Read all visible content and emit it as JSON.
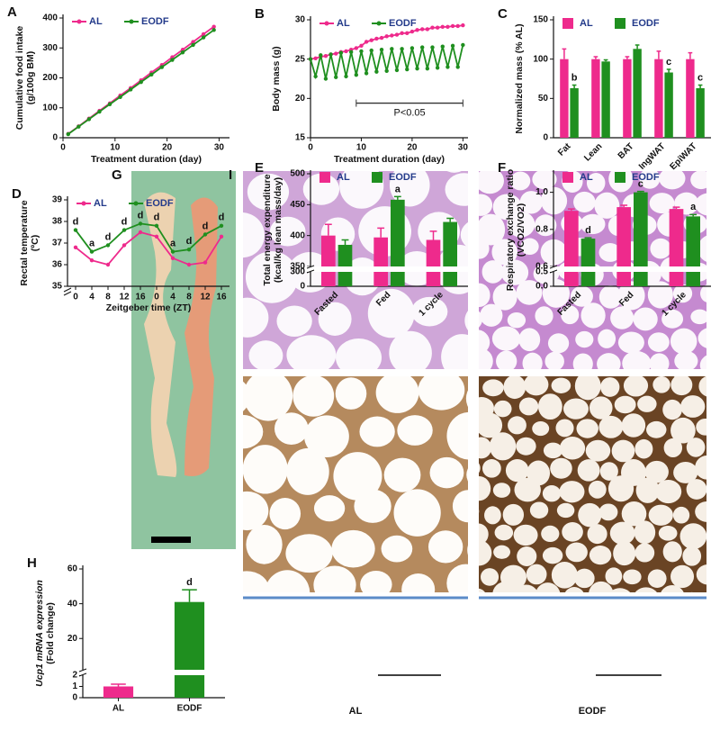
{
  "chart_data": [
    {
      "type": "line",
      "panel": "A",
      "x_label": "Treatment duration (day)",
      "y_label": [
        "Cumulative food intake",
        "(g/100g BM)"
      ],
      "x": [
        1,
        3,
        5,
        7,
        9,
        11,
        13,
        15,
        17,
        19,
        21,
        23,
        25,
        27,
        29
      ],
      "xlim": [
        0,
        32
      ],
      "xticks": [
        0,
        10,
        20,
        30
      ],
      "ylim": [
        0,
        400
      ],
      "yticks": [
        0,
        100,
        200,
        300,
        400
      ],
      "series": [
        {
          "name": "AL",
          "color": "#ee2a8c",
          "values": [
            13,
            38,
            64,
            90,
            115,
            141,
            166,
            192,
            218,
            243,
            269,
            294,
            320,
            346,
            371
          ]
        },
        {
          "name": "EODF",
          "color": "#1f8f1f",
          "values": [
            12,
            37,
            62,
            87,
            112,
            136,
            161,
            186,
            211,
            236,
            260,
            285,
            310,
            335,
            360
          ]
        }
      ]
    },
    {
      "type": "line",
      "panel": "B",
      "x_label": "Treatment duration (day)",
      "y_label": [
        "Body mass (g)"
      ],
      "x": [
        0,
        1,
        2,
        3,
        4,
        5,
        6,
        7,
        8,
        9,
        10,
        11,
        12,
        13,
        14,
        15,
        16,
        17,
        18,
        19,
        20,
        21,
        22,
        23,
        24,
        25,
        26,
        27,
        28,
        29,
        30
      ],
      "xlim": [
        0,
        31
      ],
      "xticks": [
        0,
        10,
        20,
        30
      ],
      "ylim": [
        15,
        30
      ],
      "yticks": [
        15,
        20,
        25,
        30
      ],
      "annotation": {
        "text": "P<0.05",
        "x": [
          9,
          30
        ],
        "y": 19.4
      },
      "series": [
        {
          "name": "AL",
          "color": "#ee2a8c",
          "values": [
            25.0,
            25.1,
            25.3,
            25.4,
            25.6,
            25.7,
            25.9,
            26.0,
            26.2,
            26.4,
            26.7,
            27.2,
            27.4,
            27.6,
            27.7,
            27.9,
            28.0,
            28.1,
            28.3,
            28.3,
            28.5,
            28.7,
            28.8,
            28.8,
            29.0,
            29.0,
            29.1,
            29.1,
            29.2,
            29.2,
            29.3
          ]
        },
        {
          "name": "EODF",
          "color": "#1f8f1f",
          "values": [
            25.0,
            22.8,
            25.5,
            22.5,
            25.6,
            22.7,
            25.8,
            22.8,
            25.9,
            23.0,
            26.0,
            23.2,
            26.1,
            23.4,
            26.2,
            23.5,
            26.3,
            23.6,
            26.3,
            23.7,
            26.4,
            23.8,
            26.5,
            23.8,
            26.5,
            23.9,
            26.6,
            24.0,
            26.7,
            24.0,
            26.8
          ]
        }
      ]
    },
    {
      "type": "bar",
      "panel": "C",
      "y_label": [
        "Normalized mass (% AL)"
      ],
      "categories": [
        "Fat",
        "Lean",
        "BAT",
        "IngWAT",
        "EpiWAT"
      ],
      "ylim": [
        0,
        150
      ],
      "yticks": [
        0,
        50,
        100,
        150
      ],
      "series": [
        {
          "name": "AL",
          "color": "#ee2a8c",
          "values": [
            100,
            100,
            100,
            100,
            100
          ],
          "errors": [
            13,
            3,
            3,
            10,
            8
          ]
        },
        {
          "name": "EODF",
          "color": "#1f8f1f",
          "values": [
            63,
            97,
            113,
            83,
            63
          ],
          "errors": [
            4,
            2,
            5,
            4,
            4
          ],
          "letters": [
            "b",
            null,
            null,
            "c",
            "c"
          ]
        }
      ]
    },
    {
      "type": "line",
      "panel": "D",
      "x_label": "Zeitgeber time (ZT)",
      "y_label": [
        "Rectal temperature",
        "(ºC)"
      ],
      "categories": [
        "0",
        "4",
        "8",
        "12",
        "16",
        "0",
        "4",
        "8",
        "12",
        "16"
      ],
      "ylim": [
        35,
        39
      ],
      "yticks": [
        35,
        36,
        37,
        38,
        39
      ],
      "letters": [
        "d",
        "a",
        "d",
        "d",
        "d",
        "d",
        "a",
        "d",
        "d",
        "d"
      ],
      "series": [
        {
          "name": "AL",
          "color": "#ee2a8c",
          "values": [
            36.8,
            36.2,
            36.0,
            36.9,
            37.5,
            37.3,
            36.3,
            36.0,
            36.1,
            37.3
          ]
        },
        {
          "name": "EODF",
          "color": "#1f8f1f",
          "values": [
            37.6,
            36.6,
            36.9,
            37.6,
            37.9,
            37.8,
            36.6,
            36.7,
            37.4,
            37.8
          ]
        }
      ]
    },
    {
      "type": "bar",
      "panel": "E",
      "y_label": [
        "Total energy expenditure",
        "(kcal/kg lean mass/day)"
      ],
      "categories": [
        "Fasted",
        "Fed",
        "1 cycle"
      ],
      "ylim": [
        0,
        500
      ],
      "ybreak": [
        300,
        350
      ],
      "yticks": [
        0,
        300,
        350,
        400,
        450,
        500
      ],
      "series": [
        {
          "name": "AL",
          "color": "#ee2a8c",
          "values": [
            400,
            397,
            393
          ],
          "errors": [
            18,
            15,
            14
          ]
        },
        {
          "name": "EODF",
          "color": "#1f8f1f",
          "values": [
            385,
            458,
            422
          ],
          "errors": [
            8,
            5,
            6
          ],
          "letters": [
            null,
            "a",
            null
          ]
        }
      ]
    },
    {
      "type": "bar",
      "panel": "F",
      "y_label": [
        "Respiratory exchange ratio",
        "(VCO2/VO2)"
      ],
      "categories": [
        "Fasted",
        "Fed",
        "1 cycle"
      ],
      "ylim": [
        0,
        1.1
      ],
      "ybreak": [
        0.5,
        0.6
      ],
      "yticks": [
        {
          "value": 0,
          "label": "0.0"
        },
        0.5,
        0.6,
        0.8,
        {
          "value": 1,
          "label": "1.0"
        }
      ],
      "series": [
        {
          "name": "AL",
          "color": "#ee2a8c",
          "values": [
            0.9,
            0.92,
            0.91
          ],
          "errors": [
            0.01,
            0.01,
            0.01
          ]
        },
        {
          "name": "EODF",
          "color": "#1f8f1f",
          "values": [
            0.75,
            1.0,
            0.87
          ],
          "errors": [
            0.005,
            0.005,
            0.01
          ],
          "letters": [
            "d",
            "c",
            "a"
          ]
        }
      ]
    },
    {
      "type": "bar",
      "panel": "H",
      "y_label": [
        "Ucp1 mRNA expression",
        "(Fold change)"
      ],
      "categories": [
        "AL",
        "EODF"
      ],
      "ylim": [
        0,
        60
      ],
      "ybreak": [
        2,
        2
      ],
      "yticks": [
        0,
        1,
        2,
        20,
        40,
        60
      ],
      "bar_colors": [
        "#ee2a8c",
        "#1f8f1f"
      ],
      "values": [
        1,
        41
      ],
      "errors": [
        0.2,
        7
      ],
      "letters": [
        null,
        "d"
      ]
    }
  ],
  "figure": {
    "panel_g": "G",
    "panel_i": "I",
    "group_labels": [
      "AL",
      "EODF"
    ]
  }
}
